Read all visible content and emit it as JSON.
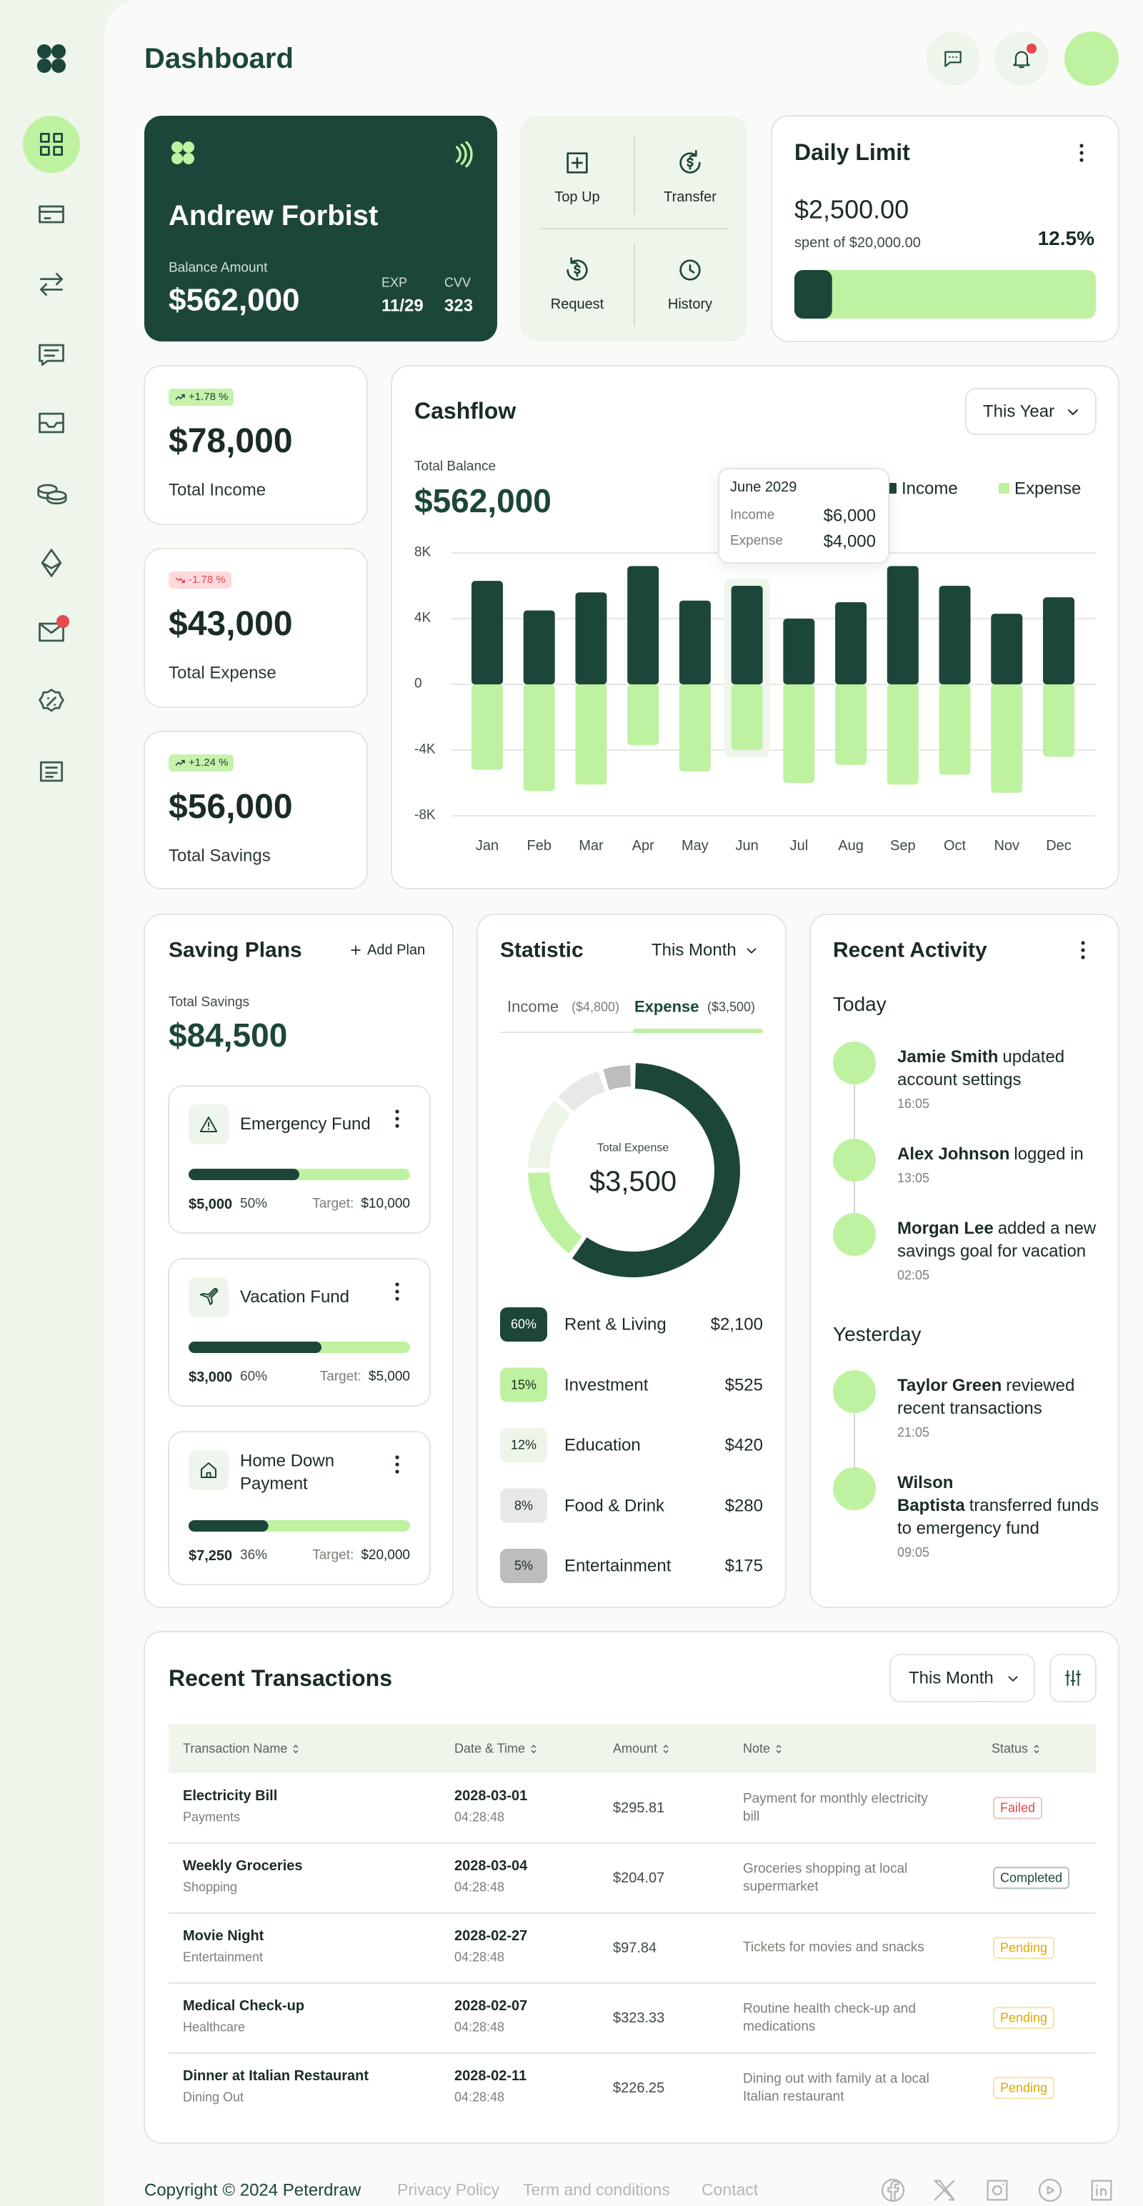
{
  "header": {
    "title": "Dashboard"
  },
  "card": {
    "name": "Andrew Forbist",
    "balance_label": "Balance Amount",
    "balance": "$562,000",
    "exp_label": "EXP",
    "exp": "11/29",
    "cvv_label": "CVV",
    "cvv": "323"
  },
  "quick_actions": [
    "Top Up",
    "Transfer",
    "Request",
    "History"
  ],
  "daily_limit": {
    "title": "Daily Limit",
    "amount": "$2,500.00",
    "note": "spent of $20,000.00",
    "percent": 12.5,
    "percent_label": "12.5%"
  },
  "stats": [
    {
      "change": "+1.78 %",
      "badge_color": "#c7f2ab",
      "value": "$78,000",
      "label": "Total Income"
    },
    {
      "change": "-1.78 %",
      "badge_color": "#ffd9dc",
      "value": "$43,000",
      "label": "Total Expense"
    },
    {
      "change": "+1.24 %",
      "badge_color": "#c7f2ab",
      "value": "$56,000",
      "label": "Total Savings"
    }
  ],
  "chart_data": {
    "type": "bar",
    "title": "Cashflow",
    "filter": "This Year",
    "total_label": "Total Balance",
    "total": "$562,000",
    "categories": [
      "Jan",
      "Feb",
      "Mar",
      "Apr",
      "May",
      "Jun",
      "Jul",
      "Aug",
      "Sep",
      "Oct",
      "Nov",
      "Dec"
    ],
    "series": [
      {
        "name": "Income",
        "color": "#1d463b",
        "values": [
          6300,
          4500,
          5600,
          7200,
          5100,
          6000,
          4000,
          5000,
          7200,
          6000,
          4300,
          5300
        ]
      },
      {
        "name": "Expense",
        "color": "#bff2a0",
        "values": [
          -5200,
          -6500,
          -6100,
          -3700,
          -5300,
          -4000,
          -6000,
          -4900,
          -6100,
          -5500,
          -6600,
          -4400
        ]
      }
    ],
    "ylim": [
      -8000,
      8000
    ],
    "yticks": [
      {
        "value": 8000,
        "label": "8K"
      },
      {
        "value": 4000,
        "label": "4K"
      },
      0,
      {
        "value": -4000,
        "label": "-4K"
      },
      {
        "value": -8000,
        "label": "-8K"
      }
    ],
    "grid": true,
    "tooltip": {
      "title": "June 2029",
      "values": [
        "$6,000",
        "$4,000"
      ]
    }
  },
  "saving_plans": {
    "title": "Saving Plans",
    "action": "Add Plan",
    "total_label": "Total Savings",
    "total": "$84,500",
    "plans": [
      {
        "name": "Emergency Fund",
        "saved": "$5,000",
        "percent": 50,
        "percent_label": "50%",
        "target_label": "Target:",
        "target": "$10,000"
      },
      {
        "name": "Vacation Fund",
        "saved": "$3,000",
        "percent": 60,
        "percent_label": "60%",
        "target_label": "Target:",
        "target": "$5,000"
      },
      {
        "name": "Home Down Payment",
        "saved": "$7,250",
        "percent": 36,
        "percent_label": "36%",
        "target_label": "Target:",
        "target": "$20,000"
      }
    ]
  },
  "statistic": {
    "title": "Statistic",
    "filter": "This Month",
    "tabs": [
      {
        "name": "Income",
        "amount": "($4,800)"
      },
      {
        "name": "Expense",
        "amount": "($3,500)"
      }
    ],
    "center_label": "Total Expense",
    "center_value": "$3,500",
    "breakdown": {
      "categories": [
        "Rent & Living",
        "Investment",
        "Education",
        "Food & Drink",
        "Entertainment"
      ],
      "values": [
        60,
        15,
        12,
        8,
        5
      ],
      "value_labels": [
        "60%",
        "15%",
        "12%",
        "8%",
        "5%"
      ],
      "amounts": [
        "$2,100",
        "$525",
        "$420",
        "$280",
        "$175"
      ],
      "colors": [
        "#1d463b",
        "#bff2a0",
        "#edf5e9",
        "#e8e8e8",
        "#bdbdbd"
      ]
    }
  },
  "activity": {
    "title": "Recent Activity",
    "groups": [
      {
        "label": "Today",
        "items": [
          {
            "actor": "Jamie Smith",
            "action": "updated account settings",
            "time": "16:05"
          },
          {
            "actor": "Alex Johnson",
            "action": "logged in",
            "time": "13:05"
          },
          {
            "actor": "Morgan Lee",
            "action": "added a new savings goal for vacation",
            "time": "02:05"
          }
        ]
      },
      {
        "label": "Yesterday",
        "items": [
          {
            "actor": "Taylor Green",
            "action": "reviewed recent transactions",
            "time": "21:05"
          },
          {
            "actor": "Wilson Baptista",
            "action": "transferred funds to emergency fund",
            "time": "09:05"
          }
        ]
      }
    ]
  },
  "transactions": {
    "title": "Recent Transactions",
    "filter": "This Month",
    "columns": [
      "Transaction Name",
      "Date & Time",
      "Amount",
      "Note",
      "Status"
    ],
    "rows": [
      {
        "name": "Electricity Bill",
        "category": "Payments",
        "date": "2028-03-01",
        "time": "04:28:48",
        "amount": "$295.81",
        "note": "Payment for monthly electricity bill",
        "status": "Failed",
        "status_color": "#e5484d"
      },
      {
        "name": "Weekly Groceries",
        "category": "Shopping",
        "date": "2028-03-04",
        "time": "04:28:48",
        "amount": "$204.07",
        "note": "Groceries shopping at local supermarket",
        "status": "Completed",
        "status_color": "#1d463b"
      },
      {
        "name": "Movie Night",
        "category": "Entertainment",
        "date": "2028-02-27",
        "time": "04:28:48",
        "amount": "$97.84",
        "note": "Tickets for movies and snacks",
        "status": "Pending",
        "status_color": "#e0a800"
      },
      {
        "name": "Medical Check-up",
        "category": "Healthcare",
        "date": "2028-02-07",
        "time": "04:28:48",
        "amount": "$323.33",
        "note": "Routine health check-up and medications",
        "status": "Pending",
        "status_color": "#e0a800"
      },
      {
        "name": "Dinner at Italian Restaurant",
        "category": "Dining Out",
        "date": "2028-02-11",
        "time": "04:28:48",
        "amount": "$226.25",
        "note": "Dining out with family at a local Italian restaurant",
        "status": "Pending",
        "status_color": "#e0a800"
      }
    ]
  },
  "footer": {
    "copyright": "Copyright © 2024 Peterdraw",
    "links": [
      "Privacy Policy",
      "Term and conditions",
      "Contact"
    ]
  }
}
